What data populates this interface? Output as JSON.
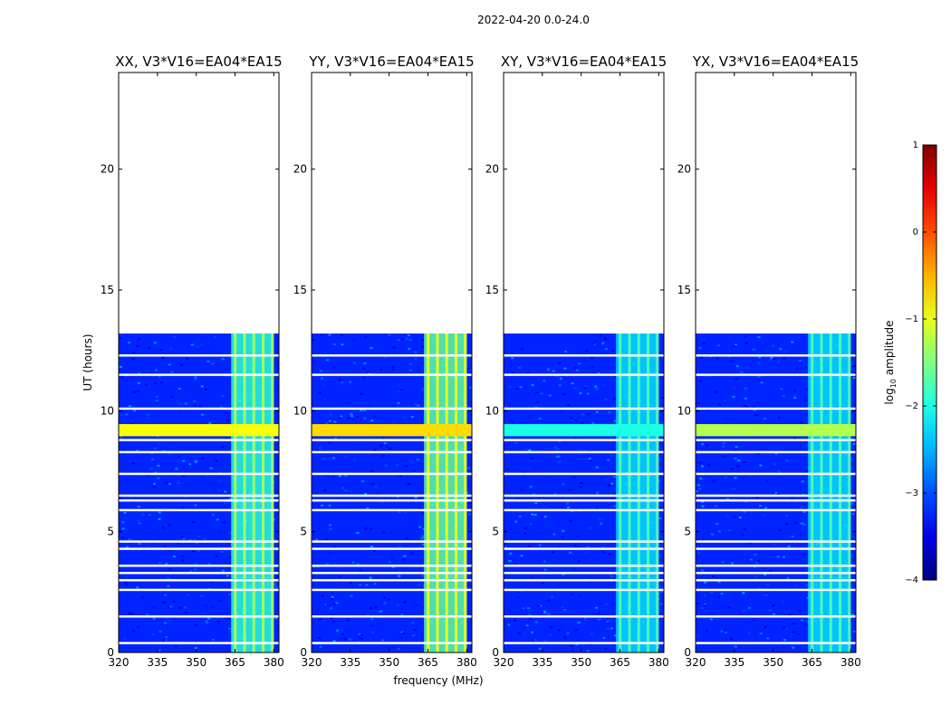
{
  "chart_data": {
    "type": "heatmap",
    "suptitle": "2022-04-20 0.0-24.0",
    "xlabel": "frequency (MHz)",
    "ylabel": "UT (hours)",
    "xlim": [
      320,
      382
    ],
    "ylim": [
      0,
      24
    ],
    "xticks": [
      320,
      335,
      350,
      365,
      380
    ],
    "yticks": [
      0,
      5,
      10,
      15,
      20
    ],
    "data_time_range": [
      0,
      13.2
    ],
    "rfi_band_MHz": [
      363.5,
      380
    ],
    "bright_rows_hours": [
      9.2
    ],
    "flagged_rows_hours": [
      0.4,
      1.5,
      2.6,
      3.0,
      3.3,
      3.6,
      4.3,
      4.6,
      5.9,
      6.3,
      6.5,
      7.4,
      8.3,
      8.8,
      10.1,
      11.5,
      12.3
    ],
    "panels": [
      {
        "title": "XX, V3*V16=EA04*EA15",
        "band_level": 0.55,
        "row_level": 0.62
      },
      {
        "title": "YY, V3*V16=EA04*EA15",
        "band_level": 0.62,
        "row_level": 0.66
      },
      {
        "title": "XY, V3*V16=EA04*EA15",
        "band_level": 0.46,
        "row_level": 0.4
      },
      {
        "title": "YX, V3*V16=EA04*EA15",
        "band_level": 0.46,
        "row_level": 0.55
      }
    ],
    "colorbar": {
      "label_pre": "log",
      "label_sub": "10",
      "label_post": " amplitude",
      "range": [
        -4,
        1
      ],
      "ticks": [
        1,
        0,
        -1,
        -2,
        -3,
        -4
      ],
      "tick_labels": [
        "1",
        "0",
        "−1",
        "−2",
        "−3",
        "−4"
      ],
      "colormap": "jet"
    }
  }
}
